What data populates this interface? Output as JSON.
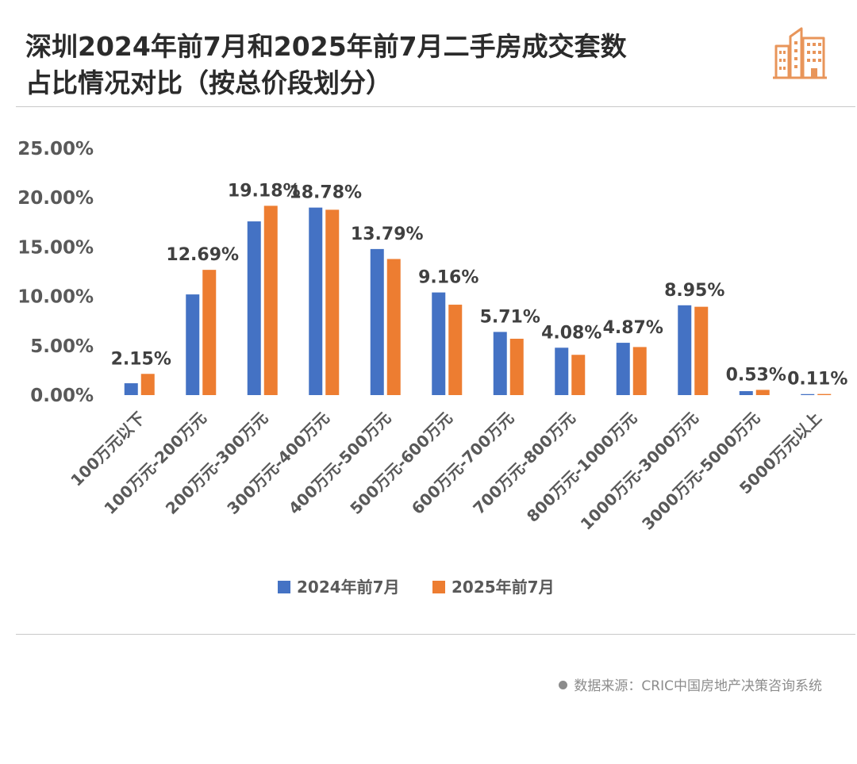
{
  "title_lines": [
    "深圳2024年前7月和2025年前7月二手房成交套数",
    "占比情况对比（按总价段划分）"
  ],
  "source": "数据来源：CRIC中国房地产决策咨询系统",
  "logo_icon": "city-buildings-icon",
  "colors": {
    "series_2024": "#4472C4",
    "series_2025": "#ED7D31",
    "accent_logo": "#E8955A",
    "axis_text": "#595959"
  },
  "chart_data": {
    "type": "bar",
    "title": "深圳2024年前7月和2025年前7月二手房成交套数占比情况对比（按总价段划分）",
    "xlabel": "",
    "ylabel": "",
    "ylim": [
      0,
      25
    ],
    "yticks": [
      "0.00%",
      "5.00%",
      "10.00%",
      "15.00%",
      "20.00%",
      "25.00%"
    ],
    "grid": false,
    "legend_position": "bottom",
    "categories": [
      "100万元以下",
      "100万元-200万元",
      "200万元-300万元",
      "300万元-400万元",
      "400万元-500万元",
      "500万元-600万元",
      "600万元-700万元",
      "700万元-800万元",
      "800万元-1000万元",
      "1000万元-3000万元",
      "3000万元-5000万元",
      "5000万元以上"
    ],
    "series": [
      {
        "name": "2024年前7月",
        "values": [
          1.2,
          10.2,
          17.6,
          19.0,
          14.8,
          10.4,
          6.4,
          4.8,
          5.3,
          9.1,
          0.4,
          0.1
        ]
      },
      {
        "name": "2025年前7月",
        "values": [
          2.15,
          12.69,
          19.18,
          18.78,
          13.79,
          9.16,
          5.71,
          4.08,
          4.87,
          8.95,
          0.53,
          0.11
        ]
      }
    ],
    "data_labels": [
      "2.15%",
      "12.69%",
      "19.18%",
      "18.78%",
      "13.79%",
      "9.16%",
      "5.71%",
      "4.08%",
      "4.87%",
      "8.95%",
      "0.53%",
      "0.11%"
    ]
  }
}
